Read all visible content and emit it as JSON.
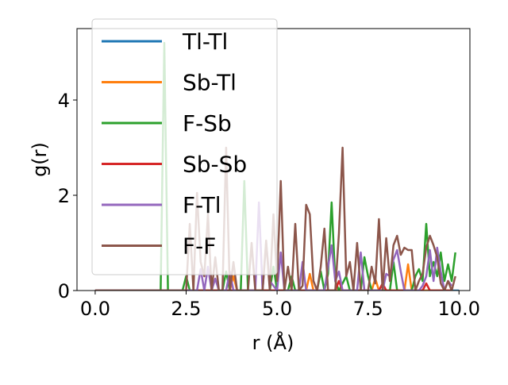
{
  "chart_data": {
    "type": "line",
    "xlabel": "r (Å)",
    "ylabel": "g(r)",
    "xlim": [
      -0.5,
      10.3
    ],
    "ylim": [
      0,
      5.5
    ],
    "x_ticks": [
      0.0,
      2.5,
      5.0,
      7.5,
      10.0
    ],
    "x_tick_labels": [
      "0.0",
      "2.5",
      "5.0",
      "7.5",
      "10.0"
    ],
    "y_ticks": [
      0,
      2,
      4
    ],
    "y_tick_labels": [
      "0",
      "2",
      "4"
    ],
    "grid": false,
    "legend_position": "upper-left",
    "series": [
      {
        "name": "Tl-Tl",
        "color": "#1f77b4",
        "points": [
          [
            0,
            0
          ],
          [
            10,
            0
          ]
        ]
      },
      {
        "name": "Sb-Tl",
        "color": "#ff7f0e",
        "points": [
          [
            0,
            0
          ],
          [
            3.7,
            0
          ],
          [
            3.8,
            0.3
          ],
          [
            3.9,
            0
          ],
          [
            5.8,
            0
          ],
          [
            5.9,
            0.35
          ],
          [
            6.0,
            0
          ],
          [
            7.6,
            0
          ],
          [
            7.7,
            0.25
          ],
          [
            7.8,
            0
          ],
          [
            8.5,
            0
          ],
          [
            8.6,
            0.55
          ],
          [
            8.7,
            0
          ],
          [
            9.8,
            0
          ]
        ]
      },
      {
        "name": "F-Sb",
        "color": "#2ca02c",
        "points": [
          [
            0,
            0
          ],
          [
            1.8,
            0
          ],
          [
            1.9,
            5.2
          ],
          [
            2.0,
            0
          ],
          [
            2.4,
            0
          ],
          [
            2.5,
            0.3
          ],
          [
            2.6,
            0
          ],
          [
            3.5,
            0
          ],
          [
            3.6,
            0.4
          ],
          [
            3.7,
            0
          ],
          [
            4.0,
            0
          ],
          [
            4.1,
            2.3
          ],
          [
            4.2,
            0
          ],
          [
            4.8,
            0
          ],
          [
            4.9,
            0.5
          ],
          [
            5.0,
            0
          ],
          [
            5.3,
            0
          ],
          [
            5.4,
            0.3
          ],
          [
            5.5,
            0
          ],
          [
            6.1,
            0
          ],
          [
            6.2,
            0.4
          ],
          [
            6.3,
            0
          ],
          [
            6.4,
            0.35
          ],
          [
            6.5,
            1.85
          ],
          [
            6.6,
            0.2
          ],
          [
            6.7,
            0
          ],
          [
            6.9,
            0.3
          ],
          [
            7.0,
            0
          ],
          [
            7.3,
            0
          ],
          [
            7.4,
            0.7
          ],
          [
            7.5,
            0.3
          ],
          [
            7.6,
            0
          ],
          [
            8.1,
            0
          ],
          [
            8.2,
            0.6
          ],
          [
            8.3,
            0
          ],
          [
            8.7,
            0
          ],
          [
            8.8,
            0.3
          ],
          [
            8.9,
            0.45
          ],
          [
            9.0,
            0.2
          ],
          [
            9.1,
            1.4
          ],
          [
            9.2,
            0.3
          ],
          [
            9.3,
            0.6
          ],
          [
            9.4,
            0.3
          ],
          [
            9.5,
            0.8
          ],
          [
            9.6,
            0.2
          ],
          [
            9.7,
            0.55
          ],
          [
            9.8,
            0.2
          ],
          [
            9.9,
            0.8
          ]
        ]
      },
      {
        "name": "Sb-Sb",
        "color": "#d62728",
        "points": [
          [
            0,
            0
          ],
          [
            6.6,
            0
          ],
          [
            6.7,
            0.2
          ],
          [
            6.8,
            0
          ],
          [
            7.8,
            0
          ],
          [
            7.9,
            0.15
          ],
          [
            8.0,
            0
          ],
          [
            9.0,
            0
          ],
          [
            9.1,
            0.15
          ],
          [
            9.2,
            0
          ],
          [
            9.8,
            0
          ]
        ]
      },
      {
        "name": "F-Tl",
        "color": "#9467bd",
        "points": [
          [
            0,
            0
          ],
          [
            2.8,
            0
          ],
          [
            2.9,
            0.45
          ],
          [
            3.0,
            0
          ],
          [
            3.1,
            0.5
          ],
          [
            3.2,
            0
          ],
          [
            3.3,
            0.25
          ],
          [
            3.4,
            0
          ],
          [
            3.6,
            0
          ],
          [
            3.7,
            0.4
          ],
          [
            3.8,
            0
          ],
          [
            4.4,
            0
          ],
          [
            4.5,
            1.85
          ],
          [
            4.6,
            0
          ],
          [
            4.7,
            1.0
          ],
          [
            4.8,
            0.2
          ],
          [
            5.0,
            0
          ],
          [
            5.1,
            0.8
          ],
          [
            5.2,
            0
          ],
          [
            5.6,
            0
          ],
          [
            5.7,
            0.6
          ],
          [
            5.8,
            0
          ],
          [
            6.3,
            0
          ],
          [
            6.4,
            0.5
          ],
          [
            6.5,
            0.95
          ],
          [
            6.6,
            0.2
          ],
          [
            6.7,
            0.4
          ],
          [
            6.8,
            0
          ],
          [
            7.2,
            0
          ],
          [
            7.3,
            0.8
          ],
          [
            7.4,
            0
          ],
          [
            7.9,
            0
          ],
          [
            8.0,
            0.35
          ],
          [
            8.1,
            0.3
          ],
          [
            8.2,
            0.65
          ],
          [
            8.3,
            0.85
          ],
          [
            8.4,
            0.4
          ],
          [
            8.5,
            0
          ],
          [
            8.9,
            0
          ],
          [
            9.0,
            0.1
          ],
          [
            9.1,
            0.3
          ],
          [
            9.2,
            0.85
          ],
          [
            9.3,
            0.2
          ],
          [
            9.4,
            0.9
          ],
          [
            9.5,
            0.4
          ],
          [
            9.6,
            0
          ],
          [
            9.7,
            0.2
          ],
          [
            9.8,
            0.1
          ]
        ]
      },
      {
        "name": "F-F",
        "color": "#8c564b",
        "points": [
          [
            0,
            0
          ],
          [
            2.5,
            0
          ],
          [
            2.6,
            1.4
          ],
          [
            2.7,
            0
          ],
          [
            2.8,
            2.05
          ],
          [
            2.9,
            0.6
          ],
          [
            3.0,
            0.3
          ],
          [
            3.1,
            1.6
          ],
          [
            3.2,
            0
          ],
          [
            3.3,
            0.7
          ],
          [
            3.4,
            0
          ],
          [
            3.5,
            0
          ],
          [
            3.6,
            3.0
          ],
          [
            3.7,
            0
          ],
          [
            3.8,
            0.6
          ],
          [
            3.9,
            0
          ],
          [
            4.2,
            0
          ],
          [
            4.3,
            1.0
          ],
          [
            4.4,
            0
          ],
          [
            4.6,
            0
          ],
          [
            4.7,
            1.05
          ],
          [
            4.8,
            0
          ],
          [
            4.9,
            1.6
          ],
          [
            5.0,
            0.2
          ],
          [
            5.1,
            2.3
          ],
          [
            5.2,
            0
          ],
          [
            5.3,
            0.5
          ],
          [
            5.4,
            0
          ],
          [
            5.5,
            1.4
          ],
          [
            5.6,
            0
          ],
          [
            5.7,
            0.1
          ],
          [
            5.8,
            1.8
          ],
          [
            5.9,
            1.6
          ],
          [
            6.0,
            0.2
          ],
          [
            6.1,
            0
          ],
          [
            6.2,
            0.5
          ],
          [
            6.3,
            1.3
          ],
          [
            6.4,
            0
          ],
          [
            6.6,
            0
          ],
          [
            6.7,
            1.2
          ],
          [
            6.8,
            3.0
          ],
          [
            6.9,
            0.3
          ],
          [
            7.0,
            0.6
          ],
          [
            7.1,
            0
          ],
          [
            7.2,
            1.0
          ],
          [
            7.3,
            0
          ],
          [
            7.5,
            0
          ],
          [
            7.6,
            0.5
          ],
          [
            7.7,
            0.15
          ],
          [
            7.8,
            1.5
          ],
          [
            7.9,
            0
          ],
          [
            8.0,
            1.1
          ],
          [
            8.1,
            0.2
          ],
          [
            8.2,
            0.95
          ],
          [
            8.3,
            1.15
          ],
          [
            8.4,
            0.75
          ],
          [
            8.5,
            0.9
          ],
          [
            8.6,
            0.85
          ],
          [
            8.7,
            0.85
          ],
          [
            8.8,
            0
          ],
          [
            8.9,
            0.2
          ],
          [
            9.0,
            0.35
          ],
          [
            9.1,
            0.9
          ],
          [
            9.2,
            1.15
          ],
          [
            9.3,
            0.95
          ],
          [
            9.4,
            0.7
          ],
          [
            9.5,
            0.15
          ],
          [
            9.6,
            0
          ],
          [
            9.7,
            0.2
          ],
          [
            9.8,
            0
          ],
          [
            9.9,
            0.3
          ]
        ]
      }
    ]
  }
}
